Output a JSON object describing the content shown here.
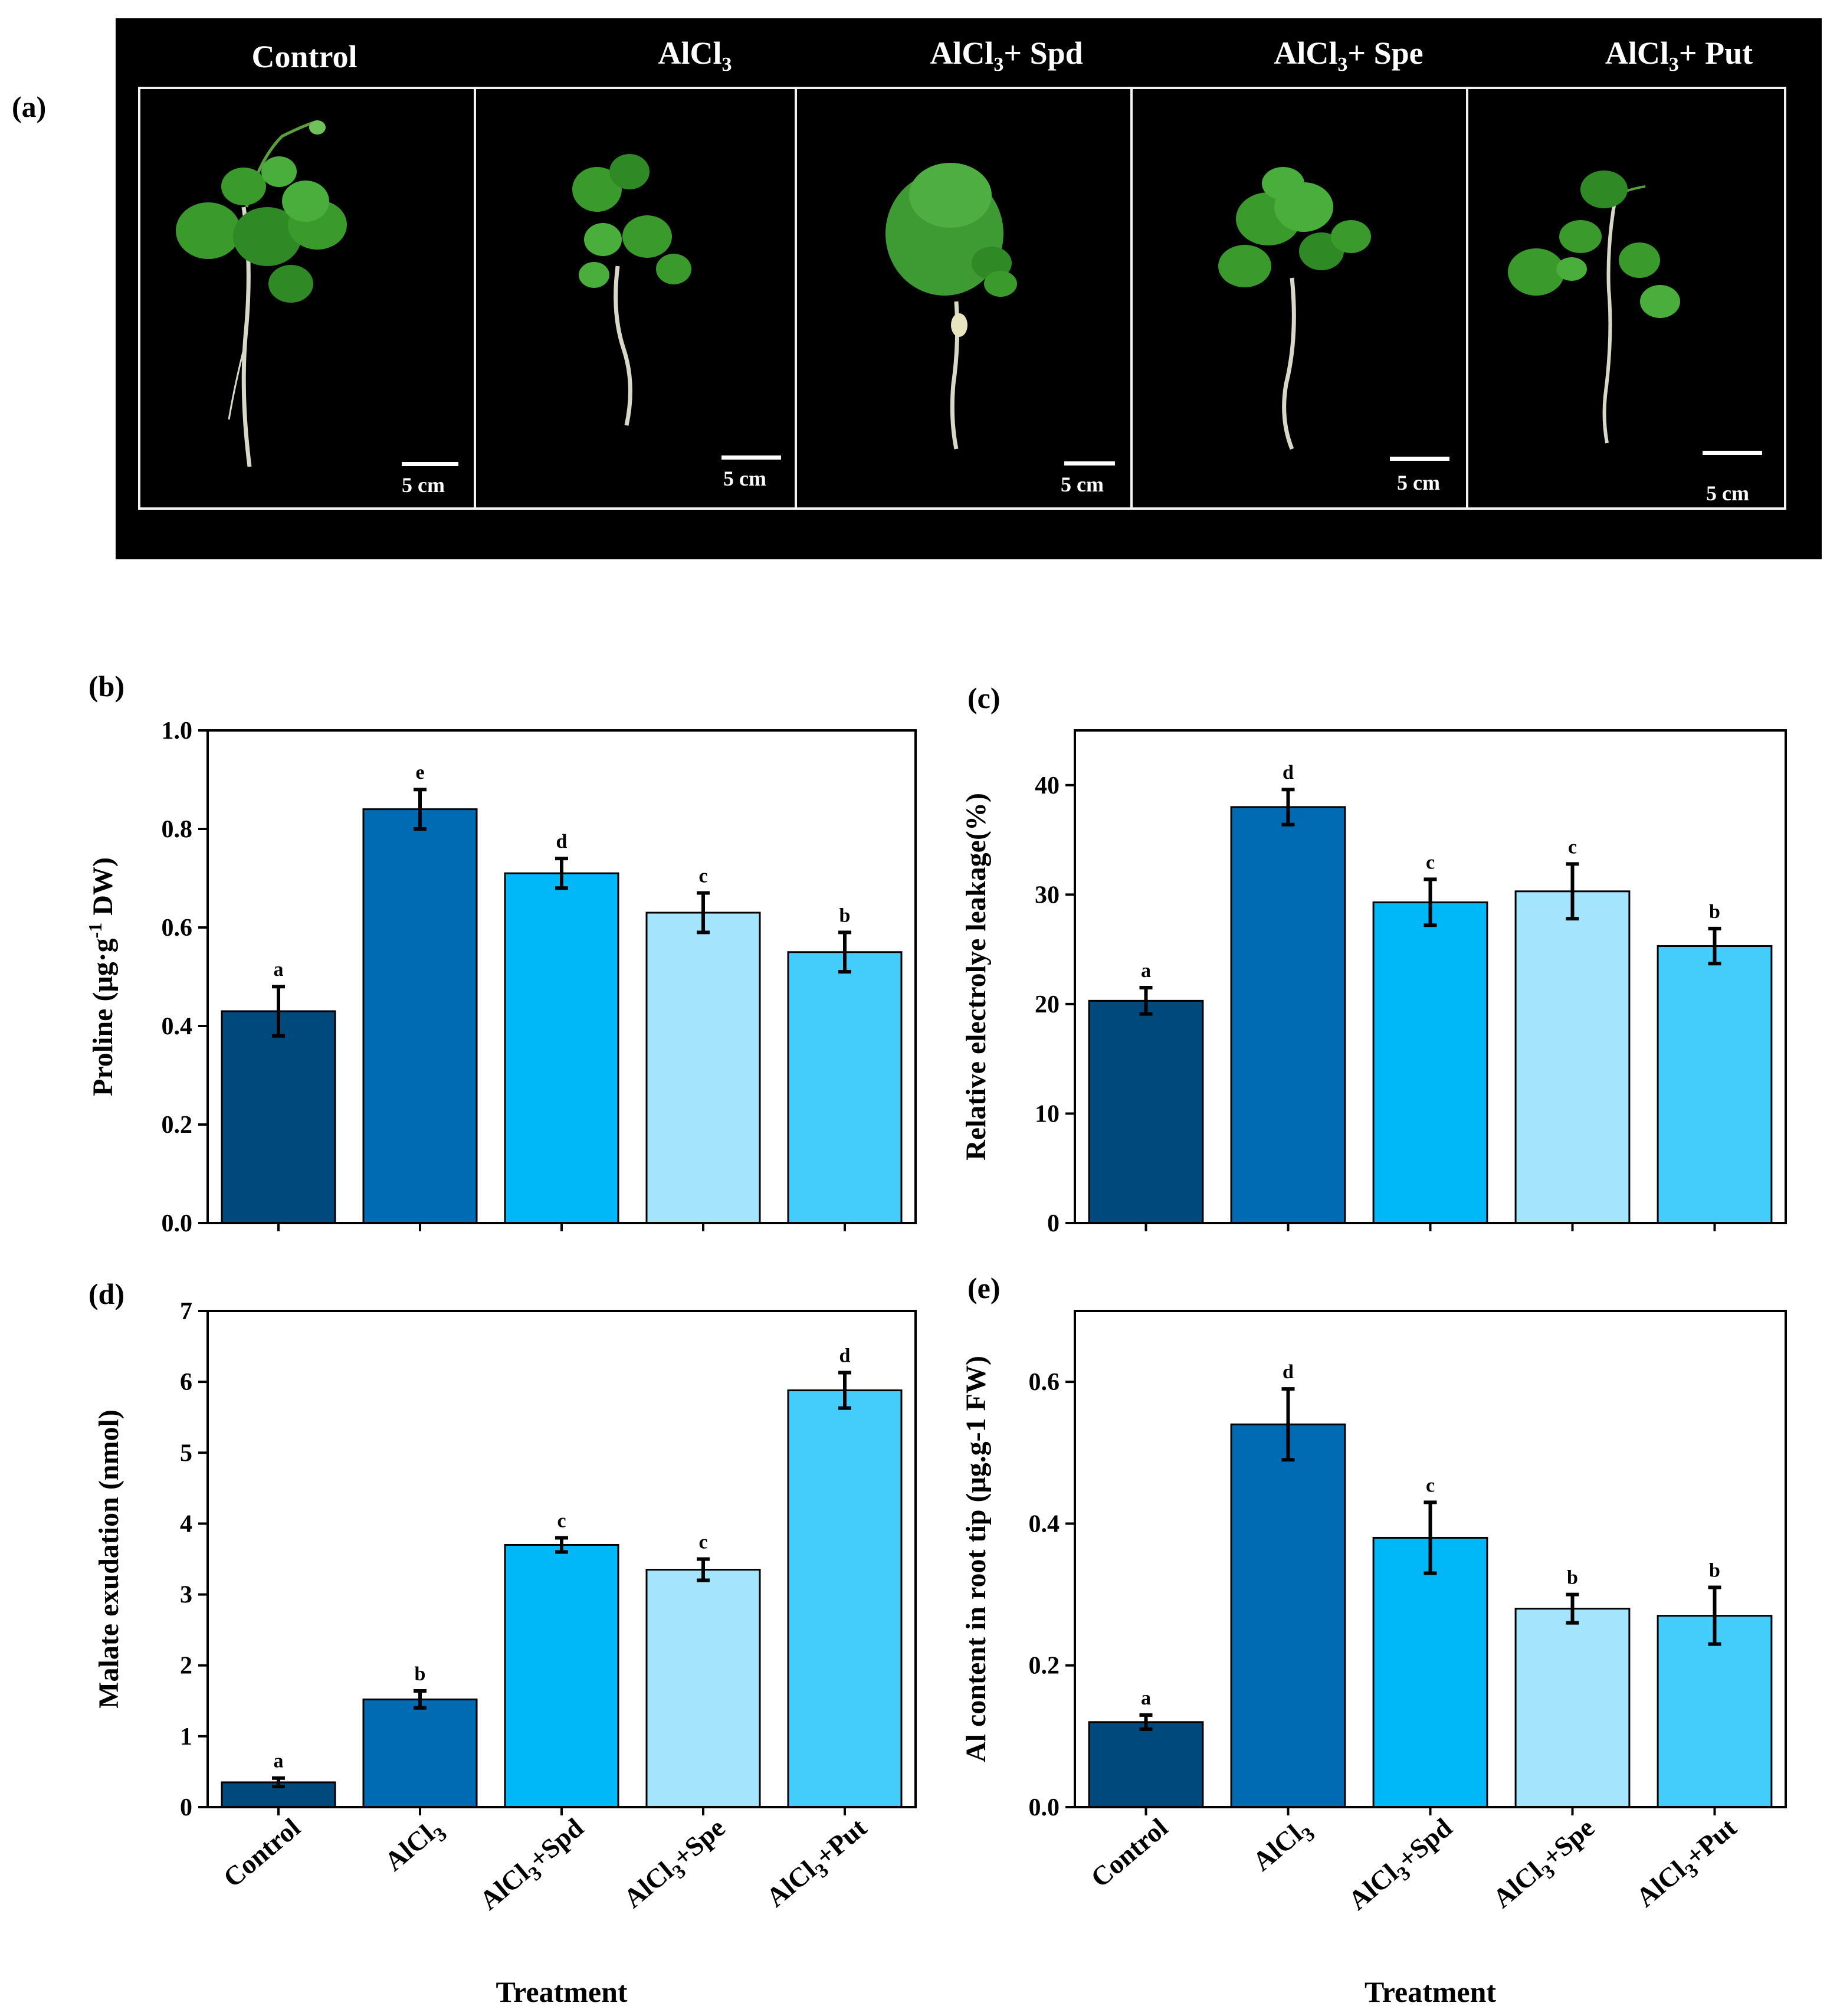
{
  "panel_a": {
    "label": "(a)",
    "conditions": [
      {
        "prefix": "Control",
        "sub": "",
        "suffix": ""
      },
      {
        "prefix": "AlCl",
        "sub": "3",
        "suffix": ""
      },
      {
        "prefix": "AlCl",
        "sub": "3",
        "suffix": "+ Spd"
      },
      {
        "prefix": "AlCl",
        "sub": "3",
        "suffix": "+ Spe"
      },
      {
        "prefix": "AlCl",
        "sub": "3",
        "suffix": "+ Put"
      }
    ],
    "scale_label": "5 cm"
  },
  "colors": {
    "control": "#00497c",
    "alcl3": "#006ab2",
    "spd": "#00b8f7",
    "spe": "#a5e4fd",
    "put": "#44cdfb",
    "plant_leaf": "#3a9a2c",
    "plant_root": "#d8d8c8"
  },
  "chart_data": [
    {
      "id": "b",
      "panel_label": "(b)",
      "type": "bar",
      "categories": [
        "Control",
        "AlCl3",
        "AlCl3+Spd",
        "AlCl3+Spe",
        "AlCl3+Put"
      ],
      "values": [
        0.43,
        0.84,
        0.71,
        0.63,
        0.55
      ],
      "errors": [
        0.05,
        0.04,
        0.03,
        0.04,
        0.04
      ],
      "letters": [
        "a",
        "e",
        "d",
        "c",
        "b"
      ],
      "ylabel": {
        "main": "Proline (μg·g",
        "sup": "-1",
        "after": " DW)"
      },
      "ylim": [
        0,
        1.0
      ],
      "yticks": [
        "0.0",
        "0.2",
        "0.4",
        "0.6",
        "0.8",
        "1.0"
      ]
    },
    {
      "id": "c",
      "panel_label": "(c)",
      "type": "bar",
      "categories": [
        "Control",
        "AlCl3",
        "AlCl3+Spd",
        "AlCl3+Spe",
        "AlCl3+Put"
      ],
      "values": [
        20.3,
        38.0,
        29.3,
        30.3,
        25.3
      ],
      "errors": [
        1.2,
        1.6,
        2.1,
        2.5,
        1.6
      ],
      "letters": [
        "a",
        "d",
        "c",
        "c",
        "b"
      ],
      "ylabel": {
        "main": "Relative electrolye leakage(%)",
        "sup": "",
        "after": ""
      },
      "ylim": [
        0,
        45
      ],
      "yticks": [
        "0",
        "10",
        "20",
        "30",
        "40"
      ]
    },
    {
      "id": "d",
      "panel_label": "(d)",
      "type": "bar",
      "categories": [
        "Control",
        "AlCl3",
        "AlCl3+Spd",
        "AlCl3+Spe",
        "AlCl3+Put"
      ],
      "values": [
        0.35,
        1.52,
        3.7,
        3.35,
        5.88
      ],
      "errors": [
        0.06,
        0.12,
        0.1,
        0.15,
        0.25
      ],
      "letters": [
        "a",
        "b",
        "c",
        "c",
        "d"
      ],
      "ylabel": {
        "main": "Malate exudation (nmol)",
        "sup": "",
        "after": ""
      },
      "ylim": [
        0,
        7
      ],
      "yticks": [
        "0",
        "1",
        "2",
        "3",
        "4",
        "5",
        "6",
        "7"
      ],
      "xlabel": "Treatment"
    },
    {
      "id": "e",
      "panel_label": "(e)",
      "type": "bar",
      "categories": [
        "Control",
        "AlCl3",
        "AlCl3+Spd",
        "AlCl3+Spe",
        "AlCl3+Put"
      ],
      "values": [
        0.12,
        0.54,
        0.38,
        0.28,
        0.27
      ],
      "errors": [
        0.01,
        0.05,
        0.05,
        0.02,
        0.04
      ],
      "letters": [
        "a",
        "d",
        "c",
        "b",
        "b"
      ],
      "ylabel": {
        "main": "Al content in root tip (μg.g-1 FW)",
        "sup": "",
        "after": ""
      },
      "ylim": [
        0,
        0.7
      ],
      "yticks": [
        "0.0",
        "0.2",
        "0.4",
        "0.6"
      ],
      "xlabel": "Treatment"
    }
  ]
}
